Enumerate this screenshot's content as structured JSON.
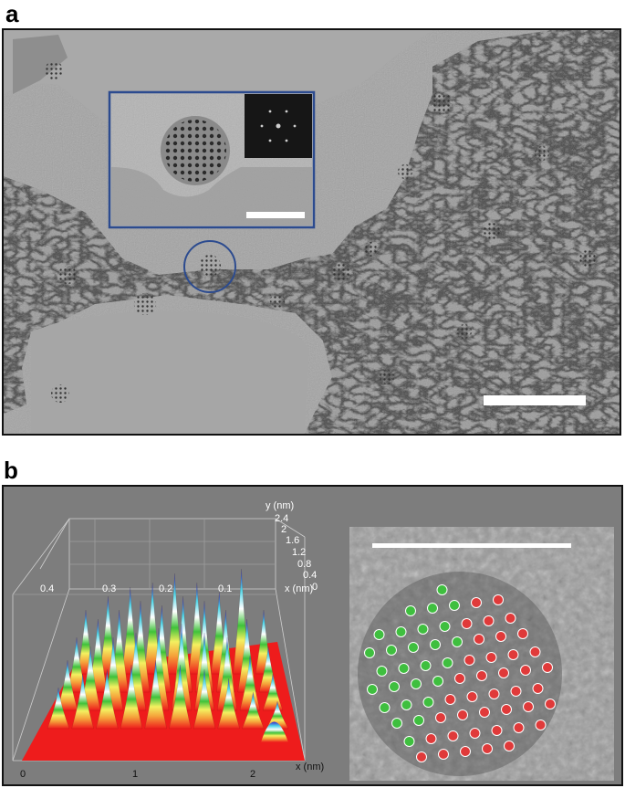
{
  "figure": {
    "panel_a_label": "a",
    "panel_b_label": "b"
  },
  "panel_b": {
    "z_axis_label": "y (nm)",
    "z_ticks": [
      "2.4",
      "2",
      "1.6",
      "1.2",
      "0.8",
      "0.4",
      "0"
    ],
    "back_x_label": "x (nm)",
    "back_ticks": [
      "0.4",
      "0.3",
      "0.2",
      "0.1"
    ],
    "front_x_ticks": [
      "0",
      "1",
      "2"
    ],
    "front_x_label": "x (nm)"
  },
  "colors": {
    "atom_green": "#3fbf3f",
    "atom_red": "#e03a3a",
    "scale_bar": "#ffffff",
    "inset_border": "#2c4b8f",
    "floor_red": "#ee1c1c"
  },
  "icons": [
    "nanoparticle-circle-marker",
    "fft-inset",
    "scale-bar"
  ]
}
